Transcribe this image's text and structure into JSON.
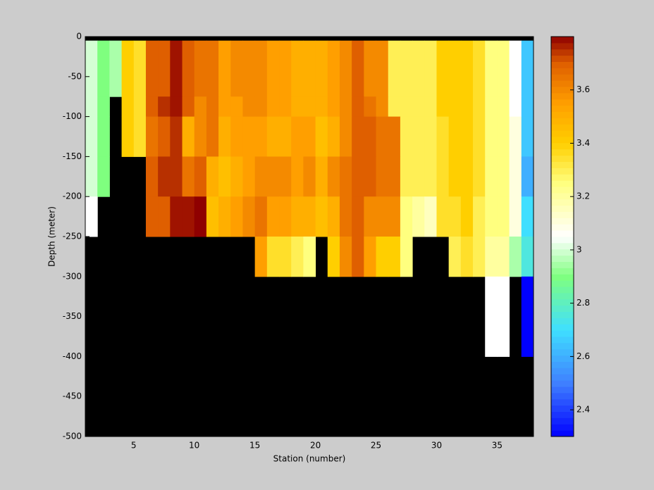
{
  "chart_data": {
    "type": "heatmap",
    "xlabel": "Station (number)",
    "ylabel": "Depth (meter)",
    "xlim": [
      1,
      38
    ],
    "ylim": [
      -500,
      0
    ],
    "xticks": [
      5,
      10,
      15,
      20,
      25,
      30,
      35
    ],
    "yticks": [
      0,
      -50,
      -100,
      -150,
      -200,
      -250,
      -300,
      -350,
      -400,
      -450,
      -500
    ],
    "x_edges": [
      1,
      2,
      3,
      4,
      5,
      6,
      7,
      8,
      9,
      10,
      11,
      12,
      13,
      14,
      15,
      16,
      17,
      18,
      19,
      20,
      21,
      22,
      23,
      24,
      25,
      26,
      27,
      28,
      29,
      30,
      31,
      32,
      33,
      34,
      35,
      36,
      37,
      38
    ],
    "y_edges": [
      0,
      -5,
      -75,
      -100,
      -150,
      -200,
      -250,
      -300,
      -400,
      -500
    ],
    "z": [
      [
        null,
        null,
        null,
        null,
        null,
        null,
        null,
        null,
        null,
        null,
        null,
        null,
        null,
        null,
        null,
        null,
        null,
        null,
        null,
        null,
        null,
        null,
        null,
        null,
        null,
        null,
        null,
        null,
        null,
        null,
        null,
        null,
        null,
        null,
        null,
        null,
        null
      ],
      [
        3.0,
        2.9,
        2.95,
        3.4,
        3.35,
        3.7,
        3.7,
        3.78,
        3.7,
        3.65,
        3.65,
        3.55,
        3.6,
        3.6,
        3.6,
        3.55,
        3.55,
        3.5,
        3.5,
        3.5,
        3.55,
        3.6,
        3.7,
        3.6,
        3.6,
        3.3,
        3.3,
        3.3,
        3.3,
        3.4,
        3.4,
        3.4,
        3.35,
        3.25,
        3.25,
        3.05,
        2.65
      ],
      [
        3.0,
        2.9,
        null,
        3.4,
        3.35,
        3.7,
        3.75,
        3.78,
        3.7,
        3.6,
        3.65,
        3.55,
        3.55,
        3.6,
        3.6,
        3.55,
        3.55,
        3.5,
        3.5,
        3.5,
        3.55,
        3.6,
        3.7,
        3.65,
        3.6,
        3.3,
        3.3,
        3.3,
        3.3,
        3.4,
        3.4,
        3.4,
        3.35,
        3.25,
        3.25,
        3.05,
        2.65
      ],
      [
        3.0,
        2.9,
        null,
        3.4,
        3.35,
        3.65,
        3.7,
        3.75,
        3.5,
        3.6,
        3.65,
        3.5,
        3.55,
        3.55,
        3.55,
        3.5,
        3.5,
        3.55,
        3.55,
        3.45,
        3.5,
        3.6,
        3.7,
        3.7,
        3.65,
        3.65,
        3.3,
        3.3,
        3.3,
        3.35,
        3.4,
        3.4,
        3.35,
        3.25,
        3.25,
        3.1,
        2.65
      ],
      [
        3.0,
        2.9,
        null,
        null,
        null,
        3.7,
        3.75,
        3.75,
        3.65,
        3.7,
        3.5,
        3.45,
        3.5,
        3.55,
        3.6,
        3.6,
        3.6,
        3.55,
        3.6,
        3.5,
        3.6,
        3.65,
        3.7,
        3.7,
        3.65,
        3.65,
        3.3,
        3.3,
        3.3,
        3.35,
        3.4,
        3.4,
        3.35,
        3.25,
        3.25,
        3.1,
        2.6
      ],
      [
        3.05,
        null,
        null,
        null,
        null,
        3.7,
        3.7,
        3.78,
        3.78,
        3.8,
        3.45,
        3.5,
        3.55,
        3.6,
        3.65,
        3.55,
        3.55,
        3.5,
        3.5,
        3.45,
        3.5,
        3.65,
        3.7,
        3.6,
        3.6,
        3.6,
        3.25,
        3.2,
        3.15,
        3.35,
        3.35,
        3.4,
        3.3,
        3.25,
        3.25,
        3.1,
        2.7
      ],
      [
        null,
        null,
        null,
        null,
        null,
        null,
        null,
        null,
        null,
        null,
        null,
        null,
        null,
        null,
        3.55,
        3.35,
        3.35,
        3.3,
        3.25,
        null,
        3.4,
        3.6,
        3.7,
        3.55,
        3.4,
        3.4,
        3.25,
        null,
        null,
        null,
        3.3,
        3.35,
        3.3,
        3.2,
        3.2,
        2.95,
        2.75
      ],
      [
        null,
        null,
        null,
        null,
        null,
        null,
        null,
        null,
        null,
        null,
        null,
        null,
        null,
        null,
        null,
        null,
        null,
        null,
        null,
        null,
        null,
        null,
        null,
        null,
        null,
        null,
        null,
        null,
        null,
        null,
        null,
        null,
        null,
        3.05,
        3.05,
        null,
        2.3
      ],
      [
        null,
        null,
        null,
        null,
        null,
        null,
        null,
        null,
        null,
        null,
        null,
        null,
        null,
        null,
        null,
        null,
        null,
        null,
        null,
        null,
        null,
        null,
        null,
        null,
        null,
        null,
        null,
        null,
        null,
        null,
        null,
        null,
        null,
        null,
        null,
        null,
        null
      ]
    ],
    "clim": [
      2.3,
      3.8
    ],
    "cticks": [
      2.4,
      2.6,
      2.8,
      3,
      3.2,
      3.4,
      3.6
    ],
    "colorscale": [
      [
        2.3,
        "#0000ff"
      ],
      [
        2.5,
        "#3f7fff"
      ],
      [
        2.7,
        "#3fdfff"
      ],
      [
        2.9,
        "#7fff7f"
      ],
      [
        3.05,
        "#ffffff"
      ],
      [
        3.25,
        "#ffff7f"
      ],
      [
        3.4,
        "#ffcf00"
      ],
      [
        3.55,
        "#ff9f00"
      ],
      [
        3.7,
        "#df5f00"
      ],
      [
        3.8,
        "#8f0000"
      ]
    ],
    "missing_color": "#000000"
  }
}
